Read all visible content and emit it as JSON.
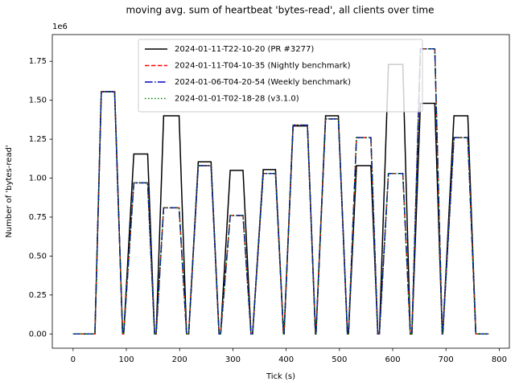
{
  "chart_data": {
    "type": "line",
    "title": "moving avg. sum of heartbeat 'bytes-read', all clients over time",
    "x_label": "Tick (s)",
    "y_label": "Number of 'bytes-read'",
    "y_offset_label": "1e6",
    "x": [
      0,
      41,
      53,
      78,
      93,
      95,
      114,
      140,
      153,
      156,
      170,
      199,
      213,
      217,
      235,
      259,
      274,
      277,
      295,
      319,
      334,
      337,
      357,
      380,
      395,
      396,
      413,
      440,
      455,
      456,
      474,
      498,
      515,
      517,
      532,
      559,
      572,
      575,
      592,
      619,
      633,
      636,
      652,
      679,
      693,
      694,
      715,
      741,
      756,
      780
    ],
    "series": [
      {
        "name": "2024-01-11-T22-10-20 (PR #3277)",
        "color": "#000000",
        "style": "solid",
        "values": [
          0,
          0,
          1.555,
          1.555,
          0,
          0,
          1.155,
          1.155,
          0,
          0,
          1.4,
          1.4,
          0,
          0,
          1.105,
          1.105,
          0,
          0,
          1.05,
          1.05,
          0,
          0,
          1.055,
          1.055,
          0,
          0,
          1.335,
          1.335,
          0,
          0,
          1.4,
          1.4,
          0,
          0,
          1.08,
          1.08,
          0,
          0,
          1.73,
          1.73,
          0,
          0,
          1.48,
          1.48,
          0,
          0,
          1.4,
          1.4,
          0,
          0
        ]
      },
      {
        "name": "2024-01-11-T04-10-35 (Nightly benchmark)",
        "color": "#ff0000",
        "style": "dashed",
        "values": [
          0,
          0,
          1.555,
          1.555,
          0,
          0,
          0.97,
          0.97,
          0,
          0,
          0.81,
          0.81,
          0,
          0,
          1.08,
          1.08,
          0,
          0,
          0.76,
          0.76,
          0,
          0,
          1.03,
          1.03,
          0,
          0,
          1.34,
          1.34,
          0,
          0,
          1.38,
          1.38,
          0,
          0,
          1.26,
          1.26,
          0,
          0,
          1.03,
          1.03,
          0,
          0,
          1.83,
          1.83,
          0,
          0,
          1.26,
          1.26,
          0,
          0
        ]
      },
      {
        "name": "2024-01-06-T04-20-54 (Weekly benchmark)",
        "color": "#0000bf",
        "style": "dashdot",
        "values": [
          0,
          0,
          1.555,
          1.555,
          0,
          0,
          0.97,
          0.97,
          0,
          0,
          0.81,
          0.81,
          0,
          0,
          1.08,
          1.08,
          0,
          0,
          0.76,
          0.76,
          0,
          0,
          1.03,
          1.03,
          0,
          0,
          1.34,
          1.34,
          0,
          0,
          1.38,
          1.38,
          0,
          0,
          1.26,
          1.26,
          0,
          0,
          1.03,
          1.03,
          0,
          0,
          1.83,
          1.83,
          0,
          0,
          1.26,
          1.26,
          0,
          0
        ]
      },
      {
        "name": "2024-01-01-T02-18-28 (v3.1.0)",
        "color": "#008000",
        "style": "dotted",
        "values": [
          0,
          0,
          1.555,
          1.555,
          0,
          0,
          0.97,
          0.97,
          0,
          0,
          0.81,
          0.81,
          0,
          0,
          1.08,
          1.08,
          0,
          0,
          0.76,
          0.76,
          0,
          0,
          1.03,
          1.03,
          0,
          0,
          1.34,
          1.34,
          0,
          0,
          1.38,
          1.38,
          0,
          0,
          1.26,
          1.26,
          0,
          0,
          1.03,
          1.03,
          0,
          0,
          1.83,
          1.83,
          0,
          0,
          1.26,
          1.26,
          0,
          0
        ]
      }
    ],
    "xlim": [
      -39,
      819
    ],
    "xticks": [
      0,
      100,
      200,
      300,
      400,
      500,
      600,
      700,
      800
    ],
    "ylim": [
      -0.0915,
      1.9215
    ],
    "yticks": [
      {
        "value": 0,
        "label": "0.00"
      },
      {
        "value": 0.25,
        "label": "0.25"
      },
      {
        "value": 0.5,
        "label": "0.50"
      },
      {
        "value": 0.75,
        "label": "0.75"
      },
      {
        "value": 1,
        "label": "1.00"
      },
      {
        "value": 1.25,
        "label": "1.25"
      },
      {
        "value": 1.5,
        "label": "1.50"
      },
      {
        "value": 1.75,
        "label": "1.75"
      }
    ],
    "grid": false,
    "legend": "upper center"
  }
}
